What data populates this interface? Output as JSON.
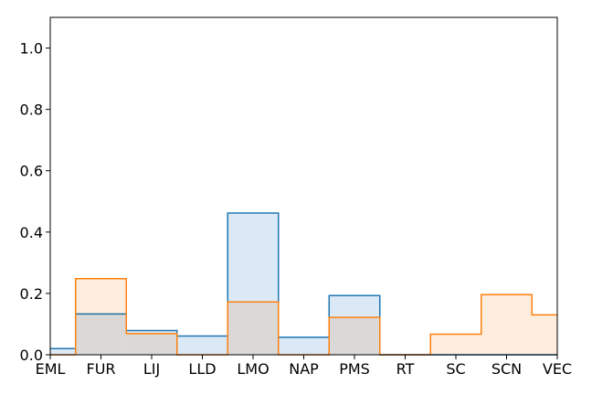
{
  "chart_data": {
    "type": "area",
    "categories": [
      "EML",
      "FUR",
      "LIJ",
      "LLD",
      "LMO",
      "NAP",
      "PMS",
      "RT",
      "SC",
      "SCN",
      "VEC"
    ],
    "series": [
      {
        "color": "#1f77b4",
        "fill": "#dbe9f6",
        "values": [
          0.02,
          0.133,
          0.079,
          0.061,
          0.462,
          0.057,
          0.193,
          0.0,
          0.0,
          0.0,
          0.0
        ]
      },
      {
        "color": "#ff7f0e",
        "fill": "#ffebd9",
        "values": [
          0.0,
          0.248,
          0.069,
          0.0,
          0.172,
          0.0,
          0.122,
          0.0,
          0.067,
          0.196,
          0.13
        ]
      }
    ],
    "yticks": [
      "0.0",
      "0.2",
      "0.4",
      "0.6",
      "0.8",
      "1.0"
    ],
    "ylim": [
      0,
      1.1
    ],
    "grid": false,
    "title": "",
    "xlabel": "",
    "ylabel": ""
  }
}
